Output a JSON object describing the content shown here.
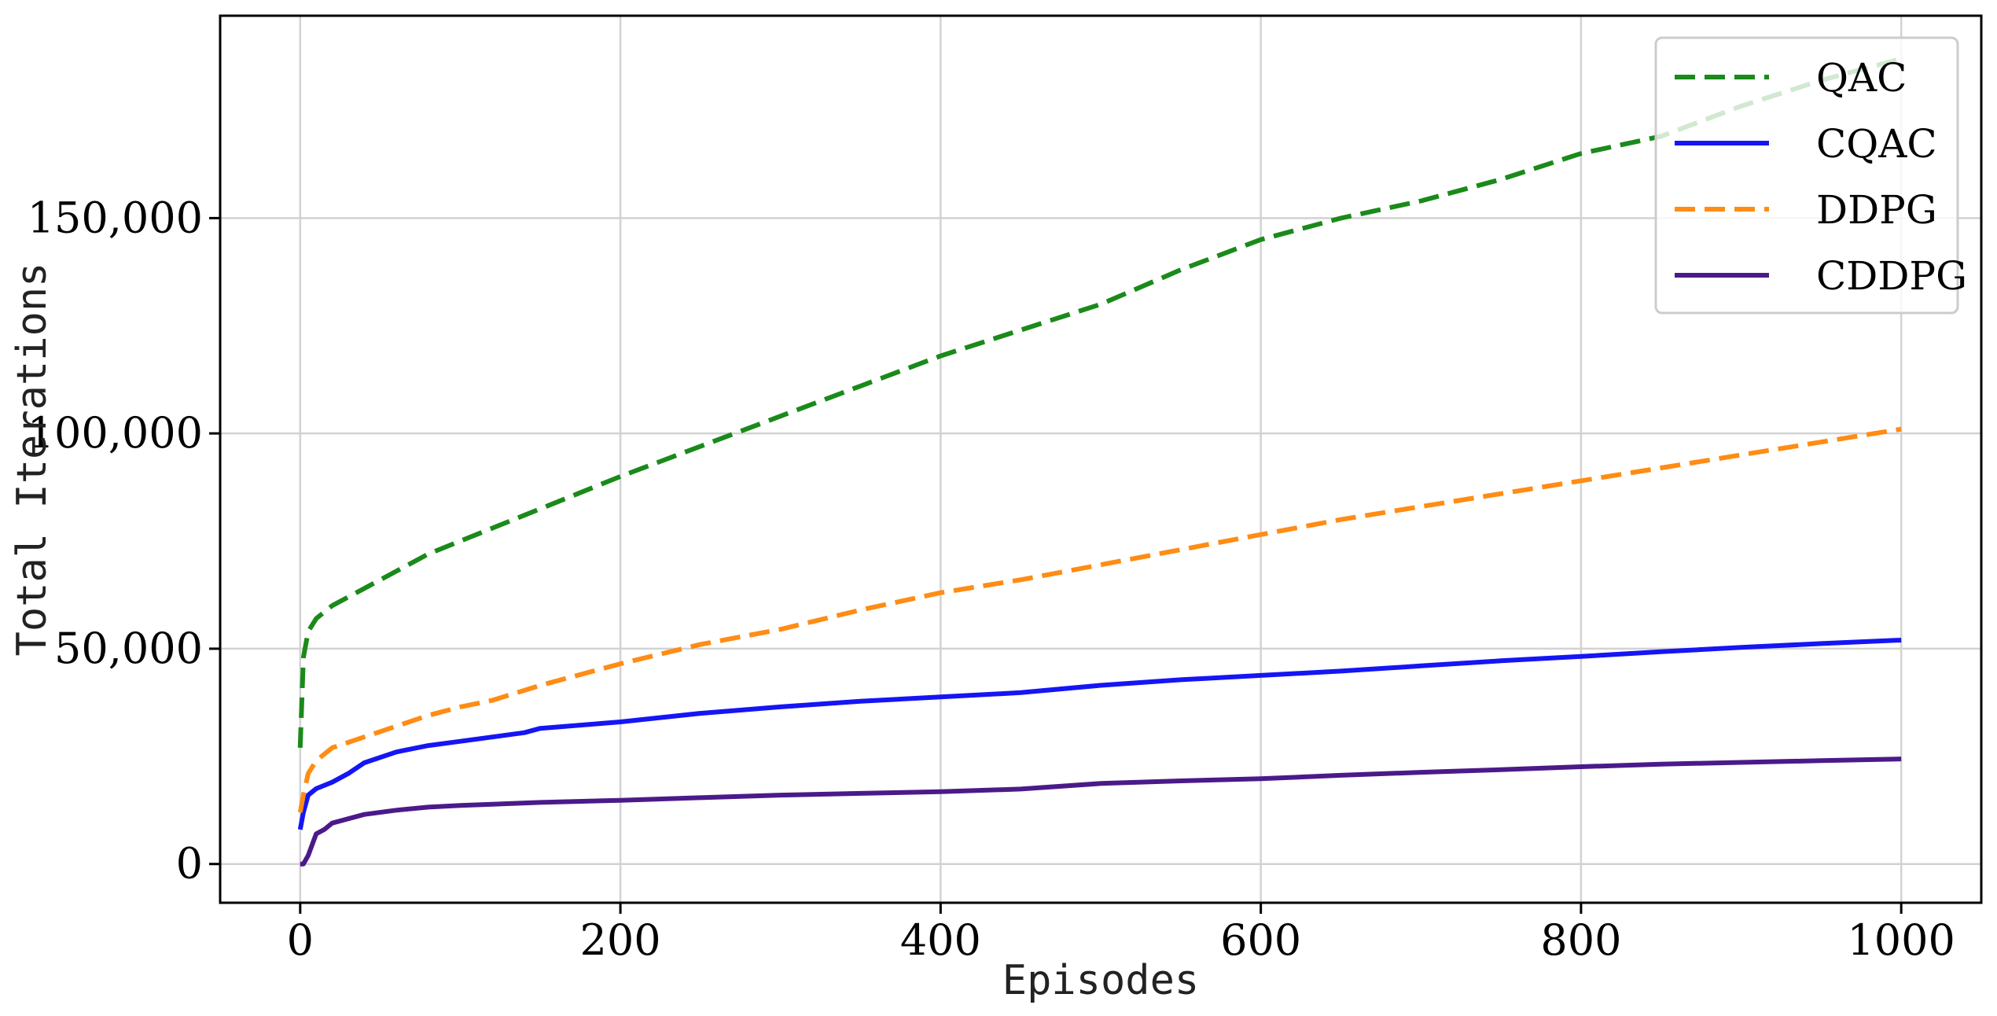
{
  "chart_data": {
    "type": "line",
    "xlabel": "Episodes",
    "ylabel": "Total Iterations",
    "xlim": [
      -50,
      1050
    ],
    "ylim": [
      -9000,
      197000
    ],
    "xticks": [
      0,
      200,
      400,
      600,
      800,
      1000
    ],
    "xtick_labels": [
      "0",
      "200",
      "400",
      "600",
      "800",
      "1000"
    ],
    "yticks": [
      0,
      50000,
      100000,
      150000
    ],
    "ytick_labels": [
      "0",
      "50,000",
      "100,000",
      "150,000"
    ],
    "grid": true,
    "legend_position": "top-right",
    "series": [
      {
        "name": "QAC",
        "color": "#1a8a1a",
        "dash": "dashed",
        "x": [
          0,
          2,
          5,
          10,
          20,
          40,
          60,
          80,
          100,
          120,
          140,
          160,
          200,
          250,
          300,
          350,
          400,
          450,
          500,
          550,
          600,
          650,
          700,
          750,
          800,
          850,
          900,
          950,
          1000
        ],
        "y": [
          27000,
          48000,
          54000,
          57000,
          60000,
          64000,
          68000,
          72000,
          75000,
          78000,
          81000,
          84000,
          90000,
          97000,
          104000,
          111000,
          118000,
          124000,
          130000,
          138000,
          145000,
          150000,
          154000,
          159000,
          165000,
          169000,
          176000,
          182000,
          187000
        ]
      },
      {
        "name": "CQAC",
        "color": "#1515f5",
        "dash": "solid",
        "x": [
          0,
          2,
          5,
          10,
          20,
          30,
          40,
          60,
          80,
          100,
          120,
          140,
          150,
          200,
          250,
          300,
          350,
          400,
          450,
          500,
          550,
          600,
          650,
          700,
          750,
          800,
          850,
          900,
          950,
          1000
        ],
        "y": [
          8000,
          12000,
          16000,
          17500,
          19000,
          21000,
          23500,
          26000,
          27500,
          28500,
          29500,
          30500,
          31500,
          33000,
          35000,
          36500,
          37800,
          38800,
          39800,
          41500,
          42800,
          43800,
          44800,
          46000,
          47200,
          48200,
          49300,
          50300,
          51200,
          52000
        ]
      },
      {
        "name": "DDPG",
        "color": "#ff8c14",
        "dash": "dashed",
        "x": [
          0,
          2,
          5,
          10,
          20,
          40,
          60,
          80,
          100,
          120,
          150,
          200,
          250,
          300,
          350,
          400,
          450,
          500,
          550,
          600,
          650,
          700,
          750,
          800,
          850,
          900,
          950,
          1000
        ],
        "y": [
          12000,
          16000,
          21000,
          24000,
          27000,
          29500,
          32000,
          34500,
          36500,
          38000,
          41500,
          46500,
          51000,
          54500,
          59000,
          63000,
          66000,
          69500,
          73000,
          76500,
          80000,
          83000,
          86000,
          89000,
          92000,
          95000,
          98000,
          101000
        ]
      },
      {
        "name": "CDDPG",
        "color": "#4b1a8a",
        "dash": "solid",
        "x": [
          0,
          2,
          5,
          8,
          10,
          15,
          20,
          30,
          40,
          60,
          80,
          100,
          150,
          200,
          250,
          300,
          350,
          400,
          450,
          500,
          550,
          600,
          650,
          700,
          750,
          800,
          850,
          900,
          950,
          1000
        ],
        "y": [
          0,
          0,
          2000,
          5000,
          7000,
          8000,
          9500,
          10500,
          11500,
          12500,
          13200,
          13600,
          14300,
          14800,
          15400,
          16000,
          16400,
          16800,
          17400,
          18700,
          19300,
          19800,
          20600,
          21300,
          21900,
          22600,
          23200,
          23600,
          24000,
          24400
        ]
      }
    ]
  }
}
